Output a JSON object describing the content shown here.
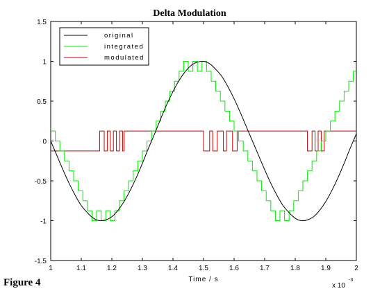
{
  "figure_label": "Figure 4",
  "chart_data": {
    "type": "line",
    "title": "Delta Modulation",
    "xlabel": "Time / s",
    "ylabel": "",
    "x_multiplier": "x 10",
    "x_multiplier_exponent": "-3",
    "xlim": [
      1,
      2
    ],
    "ylim": [
      -1.5,
      1.5
    ],
    "xticks": [
      1,
      1.1,
      1.2,
      1.3,
      1.4,
      1.5,
      1.6,
      1.7,
      1.8,
      1.9,
      2
    ],
    "xtick_labels": [
      "1",
      "1.1",
      "1.2",
      "1.3",
      "1.4",
      "1.5",
      "1.6",
      "1.7",
      "1.8",
      "1.9",
      "2"
    ],
    "yticks": [
      1.5,
      1,
      0.5,
      0,
      -0.5,
      -1,
      -1.5
    ],
    "ytick_labels": [
      "1.5",
      "1",
      "0.5",
      "0",
      "-0.5",
      "-1",
      "-1.5"
    ],
    "grid": false,
    "legend_position": "top-left",
    "series": [
      {
        "name": "original",
        "color": "#000000",
        "style": "line",
        "x": [
          1.0,
          1.02,
          1.04,
          1.06,
          1.08,
          1.1,
          1.12,
          1.14,
          1.16,
          1.18,
          1.2,
          1.22,
          1.24,
          1.26,
          1.28,
          1.3,
          1.32,
          1.34,
          1.36,
          1.38,
          1.4,
          1.42,
          1.44,
          1.46,
          1.48,
          1.5,
          1.52,
          1.54,
          1.56,
          1.58,
          1.6,
          1.62,
          1.64,
          1.66,
          1.68,
          1.7,
          1.72,
          1.74,
          1.76,
          1.78,
          1.8,
          1.82,
          1.84,
          1.86,
          1.88,
          1.9,
          1.92,
          1.94,
          1.96,
          1.98,
          2.0
        ],
        "y": [
          0,
          -0.18,
          -0.36,
          -0.53,
          -0.68,
          -0.81,
          -0.9,
          -0.97,
          -1.0,
          -0.99,
          -0.95,
          -0.87,
          -0.76,
          -0.62,
          -0.46,
          -0.28,
          -0.09,
          0.09,
          0.28,
          0.46,
          0.62,
          0.76,
          0.87,
          0.95,
          0.99,
          1.0,
          0.97,
          0.9,
          0.81,
          0.68,
          0.53,
          0.36,
          0.18,
          0,
          -0.18,
          -0.36,
          -0.53,
          -0.68,
          -0.81,
          -0.9,
          -0.97,
          -1.0,
          -0.99,
          -0.95,
          -0.87,
          -0.76,
          -0.62,
          -0.46,
          -0.28,
          -0.09,
          0.09
        ]
      },
      {
        "name": "integrated",
        "color": "#00ee00",
        "style": "step",
        "x": [
          1.0,
          1.015,
          1.03,
          1.045,
          1.06,
          1.075,
          1.09,
          1.105,
          1.12,
          1.135,
          1.15,
          1.165,
          1.18,
          1.195,
          1.21,
          1.225,
          1.24,
          1.255,
          1.27,
          1.285,
          1.3,
          1.315,
          1.33,
          1.345,
          1.36,
          1.375,
          1.39,
          1.405,
          1.42,
          1.435,
          1.45,
          1.465,
          1.48,
          1.495,
          1.51,
          1.525,
          1.54,
          1.555,
          1.57,
          1.585,
          1.6,
          1.615,
          1.63,
          1.645,
          1.66,
          1.675,
          1.69,
          1.705,
          1.72,
          1.735,
          1.75,
          1.765,
          1.78,
          1.795,
          1.81,
          1.825,
          1.84,
          1.855,
          1.87,
          1.885,
          1.9,
          1.915,
          1.93,
          1.945,
          1.96,
          1.975,
          1.99,
          2.0
        ],
        "y": [
          0.125,
          0,
          -0.125,
          -0.25,
          -0.375,
          -0.5,
          -0.625,
          -0.75,
          -0.875,
          -1.0,
          -0.875,
          -1.0,
          -0.875,
          -1.0,
          -0.875,
          -0.75,
          -0.625,
          -0.5,
          -0.375,
          -0.25,
          -0.125,
          0,
          0.125,
          0.25,
          0.375,
          0.5,
          0.625,
          0.75,
          0.875,
          1.0,
          0.875,
          1.0,
          0.875,
          1.0,
          0.875,
          0.75,
          0.625,
          0.5,
          0.375,
          0.25,
          0.125,
          0,
          -0.125,
          -0.25,
          -0.375,
          -0.5,
          -0.625,
          -0.75,
          -0.875,
          -1.0,
          -0.875,
          -1.0,
          -0.875,
          -0.75,
          -0.625,
          -0.5,
          -0.375,
          -0.25,
          -0.125,
          0,
          0.125,
          0.25,
          0.375,
          0.5,
          0.625,
          0.75,
          0.875,
          0.875
        ]
      },
      {
        "name": "modulated",
        "color": "#cc0000",
        "style": "step",
        "x": [
          1.0,
          1.16,
          1.175,
          1.185,
          1.195,
          1.205,
          1.215,
          1.225,
          1.235,
          1.24,
          1.5,
          1.52,
          1.53,
          1.545,
          1.565,
          1.575,
          1.595,
          1.61,
          1.84,
          1.855,
          1.865,
          1.875,
          1.885,
          1.895,
          2.0
        ],
        "y": [
          -0.125,
          0.125,
          -0.125,
          0.125,
          -0.125,
          0.125,
          -0.125,
          0.125,
          -0.125,
          0.125,
          -0.125,
          0.125,
          -0.125,
          0.125,
          -0.125,
          0.125,
          -0.125,
          0.125,
          -0.125,
          0.125,
          -0.125,
          0.125,
          -0.125,
          0.125,
          0.125
        ]
      }
    ]
  }
}
